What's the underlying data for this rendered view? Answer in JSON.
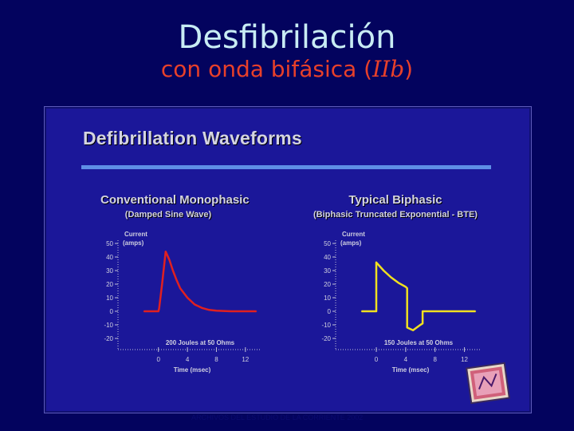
{
  "slide": {
    "title": "Desfibrilación",
    "subtitle_prefix": "con onda bifásica (",
    "subtitle_italic": "IIb",
    "subtitle_suffix": ")",
    "footer": "ARCHIVOS DEL ESTUDIO DE LA CORRIENTE 2002"
  },
  "panel": {
    "heading": "Defibrillation Waveforms"
  },
  "colors": {
    "background": "#03035e",
    "panel": "#1b1799",
    "monophasic_line": "#e02020",
    "biphasic_line": "#f0e020",
    "rule": "#5f8fe6",
    "axis": "#c0c0d8"
  },
  "chart_data": [
    {
      "type": "line",
      "title": "Conventional Monophasic",
      "subtitle": "(Damped Sine Wave)",
      "ylabel": "Current",
      "yunit": "(amps)",
      "xlabel": "Time (msec)",
      "annotation": "200 Joules at 50 Ohms",
      "ylim": [
        -20,
        50
      ],
      "xlim": [
        -2.5,
        14
      ],
      "yticks": [
        "50",
        "40",
        "30",
        "20",
        "10",
        "0",
        "-10",
        "-20"
      ],
      "ytick_values": [
        50,
        40,
        30,
        20,
        10,
        0,
        -10,
        -20
      ],
      "xticks": [
        "0",
        "4",
        "8",
        "12"
      ],
      "xtick_values": [
        0,
        4,
        8,
        12
      ],
      "grid": false,
      "series": [
        {
          "x": [
            -2,
            0,
            0.1,
            0.5,
            1.0,
            1.5,
            2.0,
            2.5,
            3.0,
            4.0,
            5.0,
            6.0,
            7.0,
            8.0,
            10.0,
            12.0,
            13.5
          ],
          "y": [
            0,
            0,
            2,
            20,
            44,
            38,
            30,
            23,
            17,
            10,
            5,
            2.5,
            1,
            0.5,
            0,
            0,
            0
          ]
        }
      ]
    },
    {
      "type": "line",
      "title": "Typical Biphasic",
      "subtitle": "(Biphasic Truncated Exponential - BTE)",
      "ylabel": "Current",
      "yunit": "(amps)",
      "xlabel": "Time (msec)",
      "annotation": "150 Joules at 50 Ohms",
      "ylim": [
        -20,
        50
      ],
      "xlim": [
        -2.5,
        14
      ],
      "yticks": [
        "50",
        "40",
        "30",
        "20",
        "10",
        "0",
        "-10",
        "-20"
      ],
      "ytick_values": [
        50,
        40,
        30,
        20,
        10,
        0,
        -10,
        -20
      ],
      "xticks": [
        "0",
        "4",
        "8",
        "12"
      ],
      "xtick_values": [
        0,
        4,
        8,
        12
      ],
      "grid": false,
      "series": [
        {
          "x": [
            -2,
            0,
            0,
            1,
            2,
            3,
            4,
            4.2,
            4.2,
            5,
            6,
            6.3,
            6.3,
            10,
            13.5
          ],
          "y": [
            0,
            0,
            36,
            30,
            25,
            21,
            18,
            17,
            -12,
            -14,
            -10,
            -9,
            0,
            0,
            0
          ]
        }
      ]
    }
  ]
}
